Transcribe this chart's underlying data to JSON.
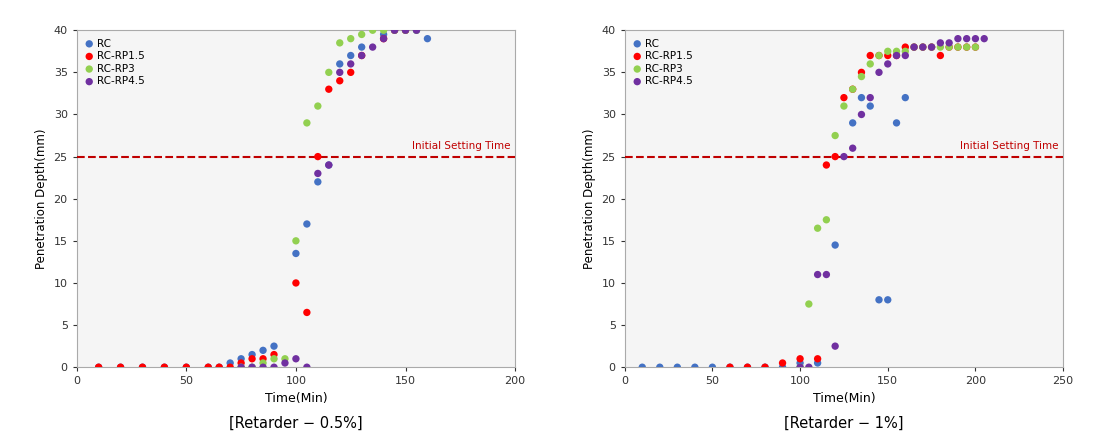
{
  "chart1": {
    "title": "[Retarder − 0.5%]",
    "xlabel": "Time(Min)",
    "ylabel": "Penetration Depth(mm)",
    "xlim": [
      0,
      200
    ],
    "ylim": [
      0,
      40
    ],
    "xticks": [
      0,
      50,
      100,
      150,
      200
    ],
    "yticks": [
      0,
      5,
      10,
      15,
      20,
      25,
      30,
      35,
      40
    ],
    "initial_setting_y": 25,
    "series": {
      "RC": {
        "color": "#4472C4",
        "x": [
          10,
          20,
          30,
          40,
          50,
          60,
          65,
          70,
          75,
          80,
          85,
          90,
          100,
          105,
          110,
          115,
          120,
          125,
          130,
          140,
          145,
          150,
          155,
          160
        ],
        "y": [
          0,
          0,
          0,
          0,
          0,
          0,
          0,
          0.5,
          1,
          1.5,
          2,
          2.5,
          13.5,
          17,
          22,
          24,
          36,
          37,
          38,
          39.5,
          40,
          40,
          40,
          39
        ]
      },
      "RC-RP1.5": {
        "color": "#FF0000",
        "x": [
          10,
          20,
          30,
          40,
          50,
          60,
          65,
          70,
          75,
          80,
          85,
          90,
          100,
          105,
          110,
          115,
          120,
          125,
          130,
          140,
          145,
          150
        ],
        "y": [
          0,
          0,
          0,
          0,
          0,
          0,
          0,
          0,
          0.5,
          1,
          1,
          1.5,
          10,
          6.5,
          25,
          33,
          34,
          35,
          37,
          39,
          40,
          40
        ]
      },
      "RC-RP3": {
        "color": "#92D050",
        "x": [
          75,
          80,
          85,
          90,
          95,
          100,
          105,
          110,
          115,
          120,
          125,
          130,
          135,
          140,
          145,
          150,
          155
        ],
        "y": [
          0,
          0,
          0.5,
          1,
          1,
          15,
          29,
          31,
          35,
          38.5,
          39,
          39.5,
          40,
          40,
          40,
          40,
          40
        ]
      },
      "RC-RP4.5": {
        "color": "#7030A0",
        "x": [
          75,
          80,
          85,
          90,
          95,
          100,
          105,
          110,
          115,
          120,
          125,
          130,
          135,
          140,
          145,
          150,
          155
        ],
        "y": [
          0,
          0,
          0,
          0,
          0.5,
          1,
          0,
          23,
          24,
          35,
          36,
          37,
          38,
          39,
          40,
          40,
          40
        ]
      }
    }
  },
  "chart2": {
    "title": "[Retarder − 1%]",
    "xlabel": "Time(Min)",
    "ylabel": "Penetration Depth(mm)",
    "xlim": [
      0,
      250
    ],
    "ylim": [
      0,
      40
    ],
    "xticks": [
      0,
      50,
      100,
      150,
      200,
      250
    ],
    "yticks": [
      0,
      5,
      10,
      15,
      20,
      25,
      30,
      35,
      40
    ],
    "initial_setting_y": 25,
    "series": {
      "RC": {
        "color": "#4472C4",
        "x": [
          10,
          20,
          30,
          40,
          50,
          60,
          70,
          80,
          90,
          100,
          110,
          120,
          130,
          135,
          140,
          145,
          150,
          155,
          160
        ],
        "y": [
          0,
          0,
          0,
          0,
          0,
          0,
          0,
          0,
          0,
          0.5,
          0.5,
          14.5,
          29,
          32,
          31,
          8,
          8,
          29,
          32
        ]
      },
      "RC-RP1.5": {
        "color": "#FF0000",
        "x": [
          60,
          70,
          80,
          90,
          100,
          110,
          115,
          120,
          125,
          130,
          135,
          140,
          145,
          150,
          155,
          160,
          165,
          170,
          175,
          180,
          185,
          190,
          195,
          200
        ],
        "y": [
          0,
          0,
          0,
          0.5,
          1,
          1,
          24,
          25,
          32,
          33,
          35,
          37,
          37,
          37,
          37,
          38,
          38,
          38,
          38,
          37,
          38,
          38,
          38,
          38
        ]
      },
      "RC-RP3": {
        "color": "#92D050",
        "x": [
          100,
          105,
          110,
          115,
          120,
          125,
          130,
          135,
          140,
          145,
          150,
          155,
          160,
          165,
          170,
          175,
          180,
          185,
          190,
          195,
          200
        ],
        "y": [
          0,
          7.5,
          16.5,
          17.5,
          27.5,
          31,
          33,
          34.5,
          36,
          37,
          37.5,
          37.5,
          37.5,
          38,
          38,
          38,
          38,
          38,
          38,
          38,
          38
        ]
      },
      "RC-RP4.5": {
        "color": "#7030A0",
        "x": [
          100,
          105,
          110,
          115,
          120,
          125,
          130,
          135,
          140,
          145,
          150,
          155,
          160,
          165,
          170,
          175,
          180,
          185,
          190,
          195,
          200,
          205
        ],
        "y": [
          0,
          0,
          11,
          11,
          2.5,
          25,
          26,
          30,
          32,
          35,
          36,
          37,
          37,
          38,
          38,
          38,
          38.5,
          38.5,
          39,
          39,
          39,
          39
        ]
      }
    }
  },
  "legend_labels": [
    "RC",
    "RC-RP1.5",
    "RC-RP3",
    "RC-RP4.5"
  ],
  "legend_colors": [
    "#4472C4",
    "#FF0000",
    "#92D050",
    "#7030A0"
  ],
  "initial_setting_label": "Initial Setting Time",
  "initial_setting_color": "#C00000",
  "bg_color": "#f5f5f5"
}
